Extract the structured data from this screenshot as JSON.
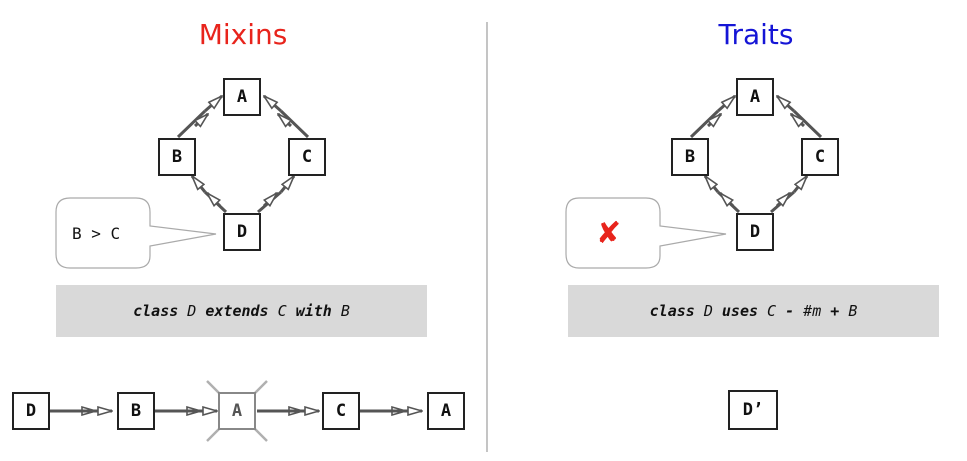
{
  "mixins": {
    "title": "Mixins",
    "title_color": "#e8241c",
    "diamond": {
      "top": "A",
      "left": "B",
      "right": "C",
      "bottom": "D"
    },
    "bubble_text": "B > C",
    "code": {
      "kw1": "class",
      "t1": " D ",
      "kw2": "extends",
      "t2": " C ",
      "kw3": "with",
      "t3": " B"
    },
    "linearization": [
      "D",
      "B",
      "A",
      "C",
      "A"
    ]
  },
  "traits": {
    "title": "Traits",
    "title_color": "#1515d6",
    "diamond": {
      "top": "A",
      "left": "B",
      "right": "C",
      "bottom": "D"
    },
    "bubble_mark": "✘",
    "code": {
      "kw1": "class",
      "t1": " D ",
      "kw2": "uses",
      "t2": " C ",
      "op1": "-",
      "t3": " #m ",
      "op2": "+",
      "t4": " B"
    },
    "result": "D’"
  },
  "colors": {
    "accent_red": "#e8241c",
    "divider": "#9e9e9e",
    "edge": "#555555",
    "code_bg": "#d9d9d9"
  }
}
